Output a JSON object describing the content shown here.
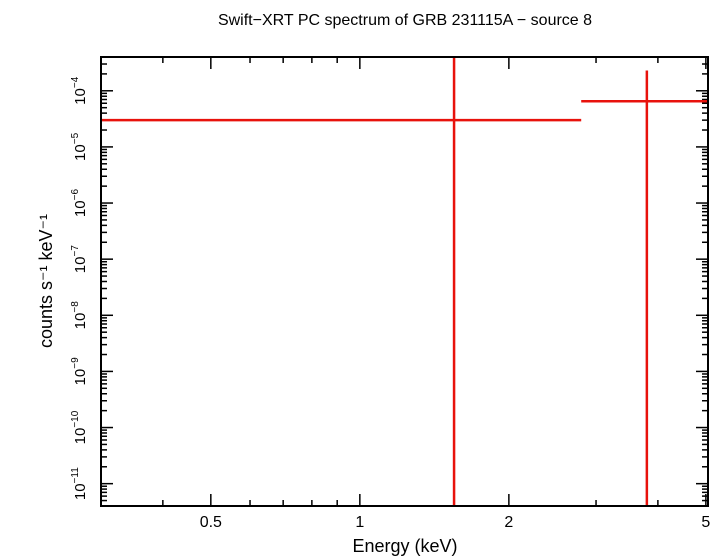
{
  "chart_data": {
    "type": "scatter",
    "title": "Swift−XRT PC spectrum of GRB 231115A − source 8",
    "xlabel": "Energy (keV)",
    "ylabel": "counts s⁻¹ keV⁻¹",
    "xscale": "log",
    "yscale": "log",
    "xlim": [
      0.3,
      5.05
    ],
    "ylim": [
      4e-12,
      0.0004
    ],
    "grid": false,
    "x_ticks": [
      {
        "value": 0.5,
        "label": "0.5"
      },
      {
        "value": 1,
        "label": "1"
      },
      {
        "value": 2,
        "label": "2"
      },
      {
        "value": 5,
        "label": "5"
      }
    ],
    "y_ticks": [
      {
        "value": 0.0001,
        "base": "10",
        "exp": "−4"
      },
      {
        "value": 1e-05,
        "base": "10",
        "exp": "−5"
      },
      {
        "value": 1e-06,
        "base": "10",
        "exp": "−6"
      },
      {
        "value": 1e-07,
        "base": "10",
        "exp": "−7"
      },
      {
        "value": 1e-08,
        "base": "10",
        "exp": "−8"
      },
      {
        "value": 1e-09,
        "base": "10",
        "exp": "−9"
      },
      {
        "value": 1e-10,
        "base": "10",
        "exp": "−10"
      },
      {
        "value": 1e-11,
        "base": "10",
        "exp": "−11"
      }
    ],
    "series": [
      {
        "color": "#e8120c",
        "points": [
          {
            "x": 1.55,
            "xlo": 0.3,
            "xhi": 2.8,
            "y": 3e-05,
            "ylo": 4e-12,
            "yhi": 0.0004
          },
          {
            "x": 3.8,
            "xlo": 2.8,
            "xhi": 5.05,
            "y": 6.5e-05,
            "ylo": 4e-12,
            "yhi": 0.00023
          }
        ]
      }
    ]
  }
}
